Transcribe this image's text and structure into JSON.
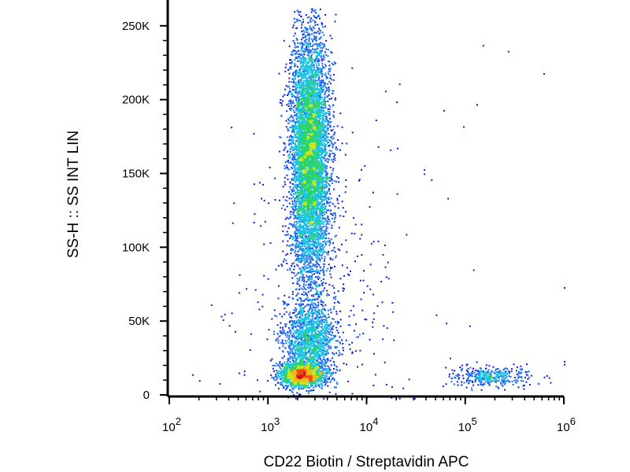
{
  "chart_data": {
    "type": "scatter",
    "title": "",
    "xlabel": "CD22 Biotin / Streptavidin APC",
    "ylabel": "SS-H :: SS INT LIN",
    "xscale": "log",
    "xlim": [
      100,
      1000000
    ],
    "ylim": [
      0,
      262144
    ],
    "x_tick_labels": [
      {
        "base": "10",
        "exp": "2",
        "value": 100
      },
      {
        "base": "10",
        "exp": "3",
        "value": 1000
      },
      {
        "base": "10",
        "exp": "4",
        "value": 10000
      },
      {
        "base": "10",
        "exp": "5",
        "value": 100000
      },
      {
        "base": "10",
        "exp": "6",
        "value": 1000000
      }
    ],
    "y_tick_labels": [
      {
        "label": "0",
        "value": 0
      },
      {
        "label": "50K",
        "value": 50000
      },
      {
        "label": "100K",
        "value": 100000
      },
      {
        "label": "150K",
        "value": 150000
      },
      {
        "label": "200K",
        "value": 200000
      },
      {
        "label": "250K",
        "value": 250000
      }
    ],
    "grid": false,
    "legend": "none",
    "colormap": [
      "#0a1fd6",
      "#1e6cf2",
      "#19c4e0",
      "#2bd46a",
      "#c8e61e",
      "#f2b81a",
      "#f04b12",
      "#d0101a"
    ],
    "populations": [
      {
        "x_center": 2200,
        "x_log_sd": 0.11,
        "y_center": 14000,
        "y_sd": 4000,
        "events": 1900
      },
      {
        "x_center": 2600,
        "x_log_sd": 0.13,
        "y_center": 37000,
        "y_sd": 13000,
        "events": 1500
      },
      {
        "x_center": 2600,
        "x_log_sd": 0.1,
        "y_center": 162000,
        "y_sd": 42000,
        "events": 6500
      },
      {
        "x_center": 180000,
        "x_log_sd": 0.2,
        "y_center": 13000,
        "y_sd": 3500,
        "events": 380
      },
      {
        "x_center": 3500,
        "x_log_sd": 0.45,
        "y_center": 60000,
        "y_sd": 60000,
        "events": 400
      }
    ],
    "outliers": [
      {
        "x": 270000,
        "y": 233000
      },
      {
        "x": 620000,
        "y": 218000
      },
      {
        "x": 150000,
        "y": 237000
      },
      {
        "x": 130000,
        "y": 197000
      },
      {
        "x": 95000,
        "y": 182000
      },
      {
        "x": 60000,
        "y": 193000
      },
      {
        "x": 45000,
        "y": 146000
      },
      {
        "x": 38000,
        "y": 150000
      },
      {
        "x": 25000,
        "y": 109000
      },
      {
        "x": 120000,
        "y": 85000
      },
      {
        "x": 110000,
        "y": 47000
      },
      {
        "x": 1000000,
        "y": 73000
      },
      {
        "x": 1000000,
        "y": 23000
      },
      {
        "x": 1000000,
        "y": 21000
      },
      {
        "x": 700000,
        "y": 12000
      },
      {
        "x": 170,
        "y": 14000
      },
      {
        "x": 200,
        "y": 10000
      },
      {
        "x": 320,
        "y": 8000
      }
    ]
  }
}
